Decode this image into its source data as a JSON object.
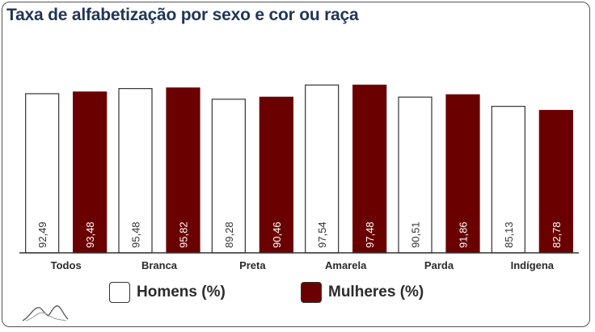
{
  "title": "Taxa de alfabetização por sexo e cor ou raça",
  "colors": {
    "homens": "#ffffff",
    "mulheres": "#6b0000",
    "title": "#1f3557",
    "axis": "#333333"
  },
  "logo_icon": "mountains-line-icon",
  "legend": [
    {
      "label": "Homens (%)",
      "color": "#ffffff"
    },
    {
      "label": "Mulheres (%)",
      "color": "#6b0000"
    }
  ],
  "chart_data": {
    "type": "bar",
    "title": "Taxa de alfabetização por sexo e cor ou raça",
    "categories": [
      "Todos",
      "Branca",
      "Preta",
      "Amarela",
      "Parda",
      "Indígena"
    ],
    "series": [
      {
        "name": "Homens (%)",
        "color": "#ffffff",
        "values": [
          92.49,
          95.48,
          89.28,
          97.54,
          90.51,
          85.13
        ],
        "labels": [
          "92,49",
          "95,48",
          "89,28",
          "97,54",
          "90,51",
          "85,13"
        ]
      },
      {
        "name": "Mulheres (%)",
        "color": "#6b0000",
        "values": [
          93.48,
          95.82,
          90.46,
          97.48,
          91.86,
          82.78
        ],
        "labels": [
          "93,48",
          "95,82",
          "90,46",
          "97,48",
          "91,86",
          "82,78"
        ]
      }
    ],
    "ylim": [
      0,
      100
    ],
    "grid": false,
    "legend_position": "bottom"
  }
}
